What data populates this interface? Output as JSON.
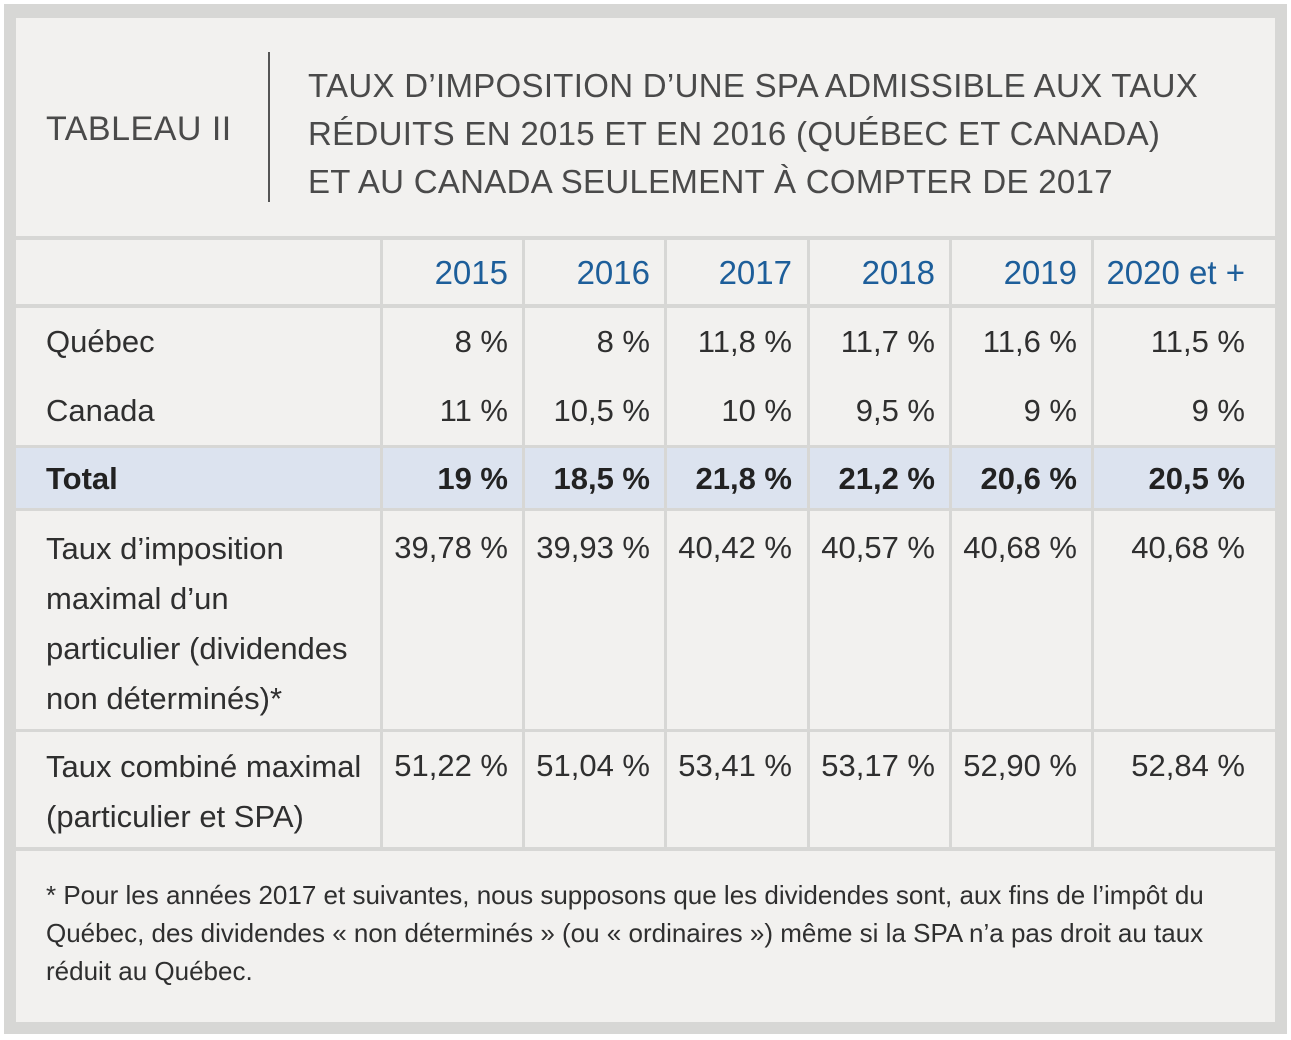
{
  "header": {
    "label": "TABLEAU II",
    "title_lines": [
      "TAUX D’IMPOSITION D’UNE SPA ADMISSIBLE AUX TAUX",
      "RÉDUITS EN 2015 ET EN 2016 (QUÉBEC ET CANADA)",
      "ET AU CANADA SEULEMENT À COMPTER DE 2017"
    ]
  },
  "table": {
    "years": [
      "2015",
      "2016",
      "2017",
      "2018",
      "2019",
      "2020 et +"
    ],
    "rows": [
      {
        "label": "Québec",
        "values": [
          "8 %",
          "8 %",
          "11,8 %",
          "11,7 %",
          "11,6 %",
          "11,5 %"
        ]
      },
      {
        "label": "Canada",
        "values": [
          "11 %",
          "10,5 %",
          "10 %",
          "9,5 %",
          "9 %",
          "9 %"
        ]
      },
      {
        "label": "Total",
        "values": [
          "19 %",
          "18,5 %",
          "21,8 %",
          "21,2 %",
          "20,6 %",
          "20,5 %"
        ]
      },
      {
        "label_lines": [
          "Taux d’imposition",
          "maximal d’un",
          "particulier (dividendes",
          "non déterminés)*"
        ],
        "values": [
          "39,78 %",
          "39,93 %",
          "40,42 %",
          "40,57 %",
          "40,68 %",
          "40,68 %"
        ]
      },
      {
        "label_lines": [
          "Taux combiné maximal",
          "(particulier et SPA)"
        ],
        "values": [
          "51,22 %",
          "51,04 %",
          "53,41 %",
          "53,17 %",
          "52,90 %",
          "52,84 %"
        ]
      }
    ]
  },
  "footnote": "* Pour les années 2017 et suivantes, nous supposons que les dividendes sont, aux fins de l’impôt du Québec, des dividendes « non déterminés » (ou « ordinaires ») même si la SPA n’a pas droit au taux réduit au Québec."
}
